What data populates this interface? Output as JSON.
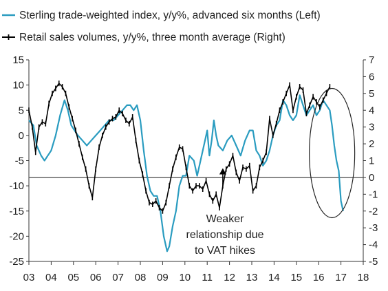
{
  "chart_data": {
    "type": "line",
    "legend": [
      {
        "name": "Sterling trade-weighted index, y/y%, advanced six months (Left)",
        "color": "#2a9cc0",
        "marker": "line"
      },
      {
        "name": "Retail sales volumes, y/y%, three month average (Right)",
        "color": "#000000",
        "marker": "cross"
      }
    ],
    "legend_position": "top-left",
    "x_ticks": [
      "03",
      "04",
      "05",
      "06",
      "07",
      "08",
      "09",
      "10",
      "11",
      "12",
      "13",
      "14",
      "15",
      "16",
      "17",
      "18"
    ],
    "xlim": [
      2003,
      2018
    ],
    "y_left": {
      "ticks": [
        15,
        10,
        5,
        0,
        -5,
        -10,
        -15,
        -20,
        -25
      ],
      "ylim": [
        -25,
        15
      ]
    },
    "y_right": {
      "ticks": [
        7,
        6,
        5,
        4,
        3,
        2,
        1,
        0,
        -1,
        -2,
        -3,
        -4,
        -5
      ],
      "ylim": [
        -5,
        7
      ]
    },
    "reference_line": {
      "axis": "right",
      "value": 0
    },
    "annotation": {
      "lines": [
        "Weaker",
        "relationship due",
        "to VAT hikes"
      ],
      "arrow_x": 2011.7,
      "arrow_tip_left": -6.5
    },
    "highlight_ellipse": {
      "x_center": 2016.6,
      "y_center_left": -3.5
    },
    "series": [
      {
        "name": "Sterling trade-weighted index, y/y%, advanced six months (Left)",
        "axis": "left",
        "color": "#2a9cc0",
        "x": [
          2003.0,
          2003.2,
          2003.35,
          2003.55,
          2003.7,
          2003.85,
          2004.0,
          2004.2,
          2004.4,
          2004.6,
          2004.75,
          2004.9,
          2005.05,
          2005.2,
          2005.4,
          2005.6,
          2005.8,
          2006.0,
          2006.2,
          2006.4,
          2006.6,
          2006.8,
          2007.0,
          2007.2,
          2007.4,
          2007.55,
          2007.7,
          2007.85,
          2008.0,
          2008.15,
          2008.3,
          2008.45,
          2008.6,
          2008.75,
          2008.9,
          2009.05,
          2009.2,
          2009.3,
          2009.45,
          2009.6,
          2009.75,
          2009.9,
          2010.05,
          2010.2,
          2010.4,
          2010.55,
          2010.7,
          2010.9,
          2011.0,
          2011.1,
          2011.2,
          2011.3,
          2011.4,
          2011.5,
          2011.7,
          2011.9,
          2012.1,
          2012.3,
          2012.5,
          2012.7,
          2012.9,
          2013.05,
          2013.2,
          2013.35,
          2013.5,
          2013.65,
          2013.8,
          2013.95,
          2014.1,
          2014.25,
          2014.4,
          2014.55,
          2014.7,
          2014.85,
          2015.0,
          2015.15,
          2015.3,
          2015.45,
          2015.6,
          2015.75,
          2015.9,
          2016.05,
          2016.2,
          2016.35,
          2016.5,
          2016.6,
          2016.7,
          2016.8,
          2016.9,
          2017.0,
          2017.1
        ],
        "values": [
          3,
          2,
          -2,
          -4,
          -5,
          -4,
          -3,
          0,
          4,
          7,
          5,
          2,
          1,
          0,
          -1,
          -2,
          -1,
          0,
          1,
          2,
          3,
          3,
          4,
          5,
          6,
          6,
          5,
          6,
          3,
          -3,
          -8,
          -11,
          -12,
          -12,
          -15,
          -20,
          -23,
          -22,
          -18,
          -15,
          -10,
          -8,
          -8,
          -4,
          -5,
          -8,
          -5,
          -1,
          1,
          -4,
          -1,
          3,
          0,
          -2,
          -3,
          -1,
          0,
          -2,
          -4,
          -1,
          1,
          1,
          -3,
          -4,
          -6,
          -5,
          -3,
          0,
          2,
          3,
          7,
          6,
          4,
          3,
          4,
          8,
          6,
          4,
          5,
          6,
          4,
          5,
          7,
          6,
          5,
          2,
          -2,
          -5,
          -7,
          -13,
          -15
        ],
        "label_values": false
      },
      {
        "name": "Retail sales volumes, y/y%, three month average (Right)",
        "axis": "right",
        "color": "#000000",
        "x": [
          2003.0,
          2003.15,
          2003.3,
          2003.45,
          2003.6,
          2003.75,
          2003.9,
          2004.05,
          2004.2,
          2004.35,
          2004.5,
          2004.65,
          2004.8,
          2004.95,
          2005.1,
          2005.25,
          2005.4,
          2005.55,
          2005.7,
          2005.85,
          2006.0,
          2006.15,
          2006.3,
          2006.45,
          2006.6,
          2006.75,
          2006.9,
          2007.05,
          2007.2,
          2007.35,
          2007.5,
          2007.65,
          2007.8,
          2007.95,
          2008.1,
          2008.25,
          2008.4,
          2008.55,
          2008.7,
          2008.85,
          2009.0,
          2009.15,
          2009.3,
          2009.45,
          2009.6,
          2009.75,
          2009.9,
          2010.05,
          2010.2,
          2010.35,
          2010.5,
          2010.65,
          2010.8,
          2010.95,
          2011.1,
          2011.25,
          2011.4,
          2011.55,
          2011.7,
          2011.85,
          2012.0,
          2012.15,
          2012.3,
          2012.45,
          2012.6,
          2012.75,
          2012.9,
          2013.05,
          2013.2,
          2013.35,
          2013.5,
          2013.65,
          2013.8,
          2013.95,
          2014.1,
          2014.25,
          2014.4,
          2014.55,
          2014.7,
          2014.85,
          2015.0,
          2015.15,
          2015.3,
          2015.45,
          2015.6,
          2015.75,
          2015.9,
          2016.05,
          2016.2,
          2016.35,
          2016.5
        ],
        "values": [
          4,
          3,
          1.5,
          3,
          3.3,
          3.2,
          4.4,
          5,
          5.3,
          5.6,
          5.4,
          5,
          4.2,
          3.5,
          2.8,
          2,
          1.2,
          0.5,
          -0.5,
          -1.2,
          0.5,
          1.8,
          2.5,
          3,
          3.3,
          3.5,
          3.6,
          4,
          3.8,
          3.4,
          3.2,
          3.6,
          2.2,
          1,
          0.2,
          -0.8,
          -1.5,
          -1.6,
          -1.4,
          -1.8,
          -2,
          -1.5,
          -0.5,
          0.5,
          1.2,
          1.8,
          1.7,
          0.6,
          -0.5,
          -0.8,
          -0.5,
          -0.5,
          -0.7,
          -0.2,
          -1,
          -1.4,
          -1,
          -1.8,
          -0.5,
          0.5,
          0.8,
          1.3,
          0.3,
          -0.2,
          0.6,
          0.5,
          0.7,
          -0.8,
          -0.5,
          0.6,
          1,
          1.5,
          3.5,
          2.5,
          3.2,
          4,
          4.5,
          5,
          5.5,
          4,
          4.8,
          5.4,
          5.2,
          3.8,
          4.3,
          4.8,
          4.5,
          4.2,
          4.6,
          5,
          5.4
        ]
      }
    ]
  }
}
